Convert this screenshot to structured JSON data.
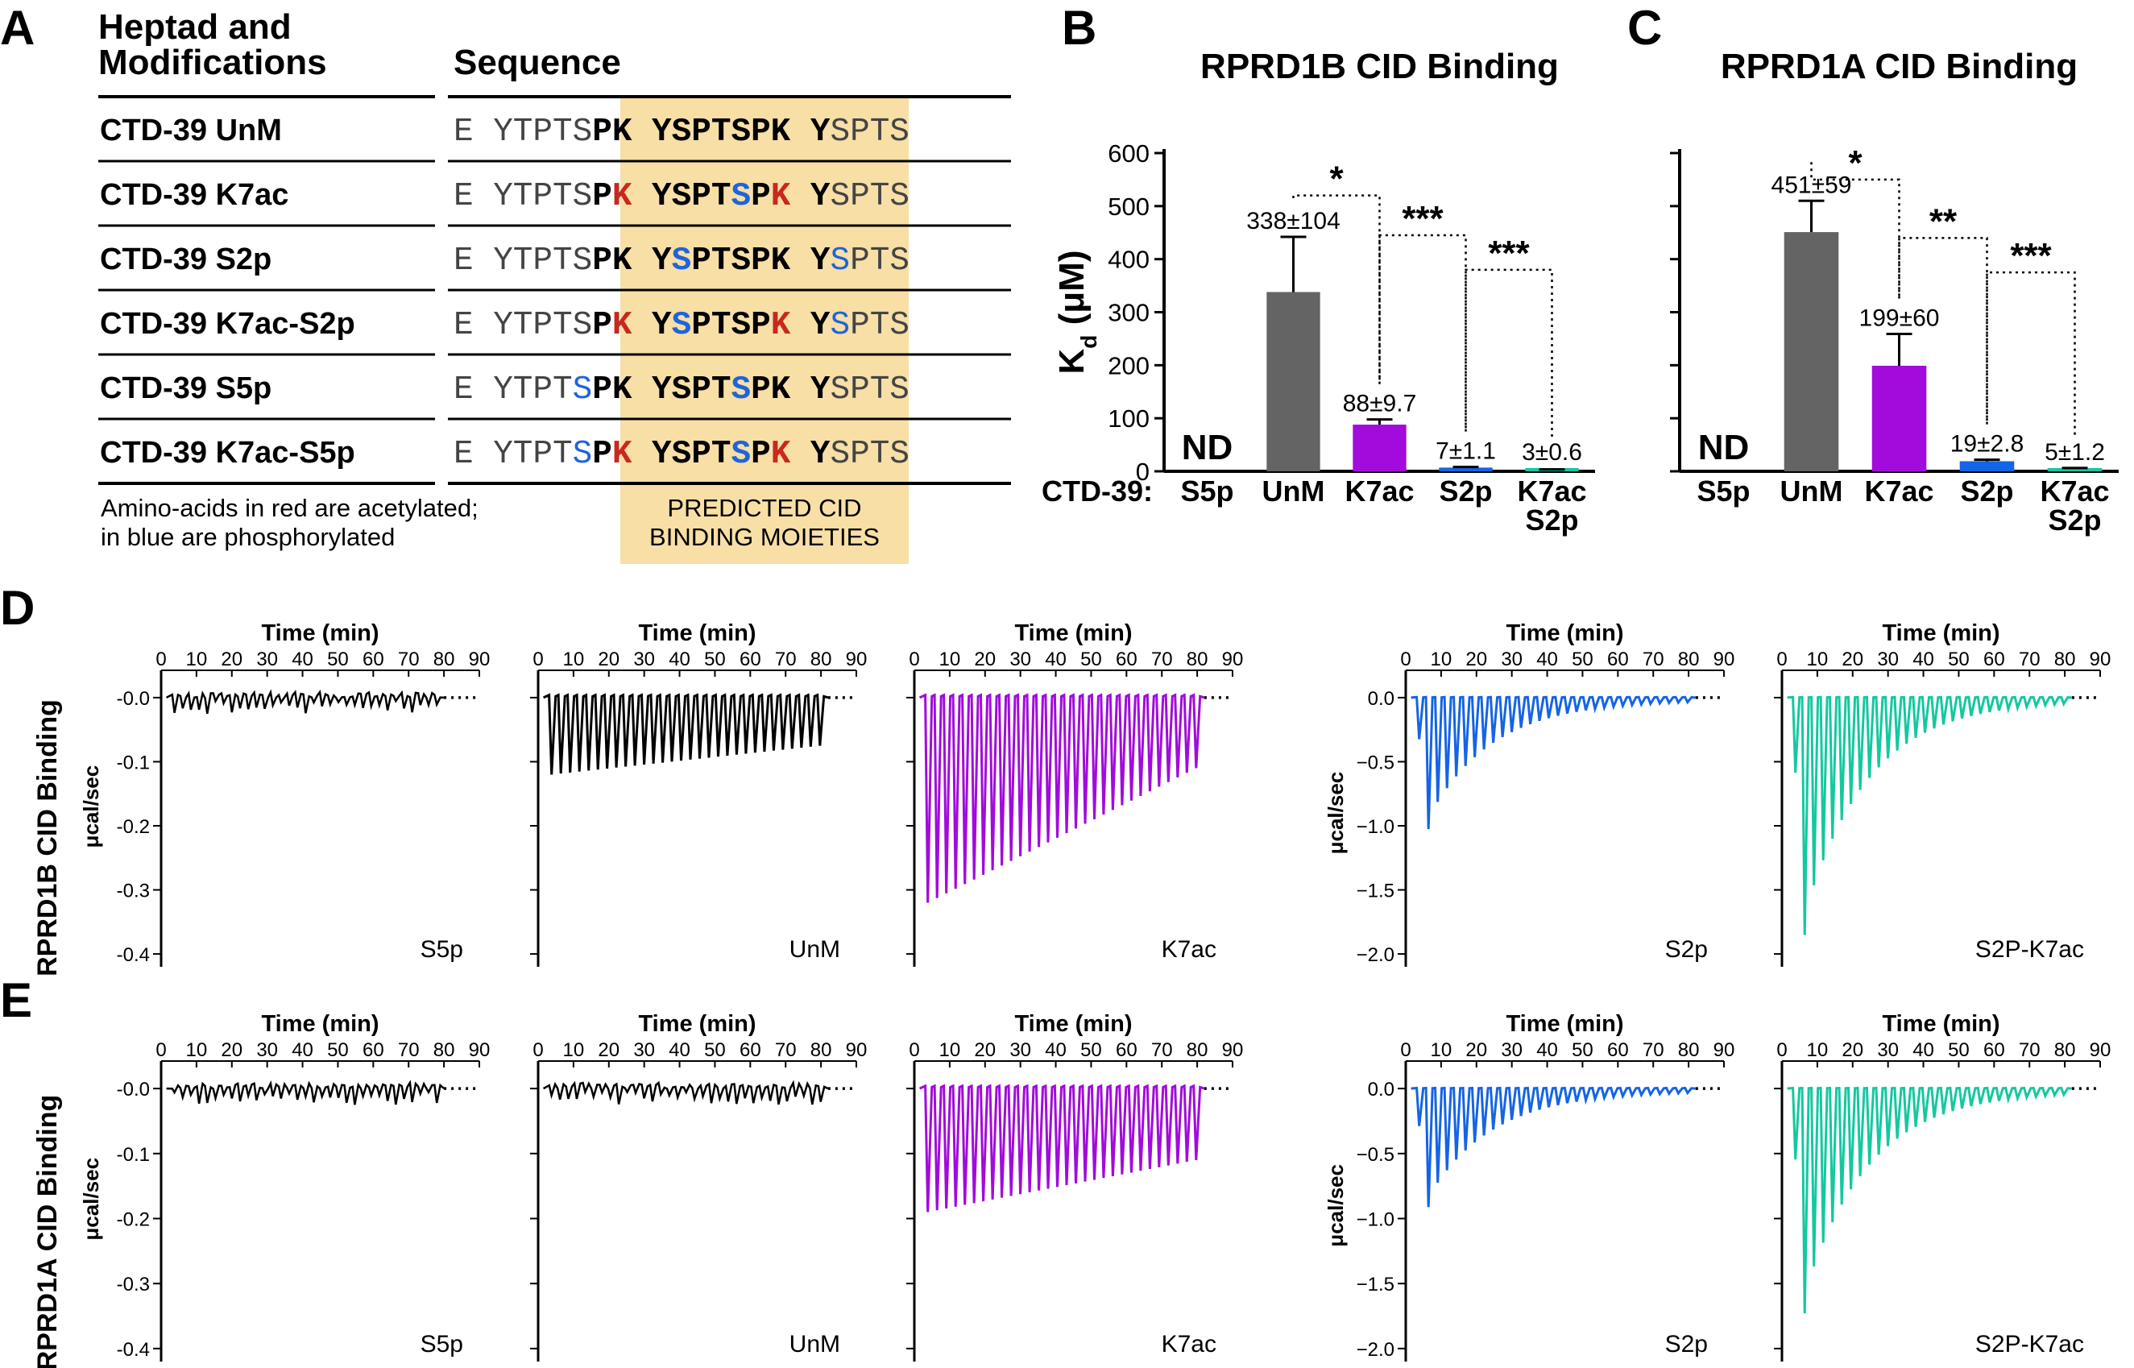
{
  "panels": {
    "a": "A",
    "b": "B",
    "c": "C",
    "d": "D",
    "e": "E"
  },
  "panel_a": {
    "header_left_line1": "Heptad and",
    "header_left_line2": "Modifications",
    "header_right": "Sequence",
    "rows": [
      {
        "label": "CTD-39 UnM",
        "segments": [
          {
            "t": "E YTPTS",
            "c": "p"
          },
          {
            "t": "PK YSPTSPK Y",
            "c": "b"
          },
          {
            "t": "SPTS",
            "c": "p"
          }
        ]
      },
      {
        "label": "CTD-39 K7ac",
        "segments": [
          {
            "t": "E YTPTS",
            "c": "p"
          },
          {
            "t": "P",
            "c": "b"
          },
          {
            "t": "K",
            "c": "r"
          },
          {
            "t": " YSPT",
            "c": "b"
          },
          {
            "t": "S",
            "c": "u"
          },
          {
            "t": "P",
            "c": "b"
          },
          {
            "t": "K",
            "c": "r"
          },
          {
            "t": " Y",
            "c": "b"
          },
          {
            "t": "SPTS",
            "c": "p"
          }
        ]
      },
      {
        "label": "CTD-39 S2p",
        "segments": [
          {
            "t": "E YTPTS",
            "c": "p"
          },
          {
            "t": "PK Y",
            "c": "b"
          },
          {
            "t": "S",
            "c": "u"
          },
          {
            "t": "PTSPK Y",
            "c": "b"
          },
          {
            "t": "S",
            "c": "q"
          },
          {
            "t": "PTS",
            "c": "p"
          }
        ]
      },
      {
        "label": "CTD-39 K7ac-S2p",
        "segments": [
          {
            "t": "E YTPTS",
            "c": "p"
          },
          {
            "t": "P",
            "c": "b"
          },
          {
            "t": "K",
            "c": "r"
          },
          {
            "t": " Y",
            "c": "b"
          },
          {
            "t": "S",
            "c": "u"
          },
          {
            "t": "PTSP",
            "c": "b"
          },
          {
            "t": "K",
            "c": "r"
          },
          {
            "t": " Y",
            "c": "b"
          },
          {
            "t": "S",
            "c": "q"
          },
          {
            "t": "PTS",
            "c": "p"
          }
        ]
      },
      {
        "label": "CTD-39 S5p",
        "segments": [
          {
            "t": "E YTPT",
            "c": "p"
          },
          {
            "t": "S",
            "c": "q"
          },
          {
            "t": "PK YSPT",
            "c": "b"
          },
          {
            "t": "S",
            "c": "u"
          },
          {
            "t": "PK Y",
            "c": "b"
          },
          {
            "t": "SPTS",
            "c": "p"
          }
        ]
      },
      {
        "label": "CTD-39 K7ac-S5p",
        "segments": [
          {
            "t": "E YTPT",
            "c": "p"
          },
          {
            "t": "S",
            "c": "q"
          },
          {
            "t": "P",
            "c": "b"
          },
          {
            "t": "K",
            "c": "r"
          },
          {
            "t": " YSPT",
            "c": "b"
          },
          {
            "t": "S",
            "c": "u"
          },
          {
            "t": "P",
            "c": "b"
          },
          {
            "t": "K",
            "c": "r"
          },
          {
            "t": " Y",
            "c": "b"
          },
          {
            "t": "SPTS",
            "c": "p"
          }
        ]
      }
    ],
    "note_line1": "Amino-acids in red are acetylated;",
    "note_line2": "in blue are phosphorylated",
    "box_line1": "PREDICTED CID",
    "box_line2": "BINDING MOIETIES"
  },
  "kd_charts": {
    "category_prefix": "CTD-39:",
    "ylabel": "K",
    "ylabel_sub": "d",
    "ylabel_unit": " (μM)",
    "nd_label": "ND"
  },
  "colors": {
    "unm": "#646464",
    "k7ac": "#a10bdb",
    "s2p": "#1464e6",
    "k7ac_s2p": "#14c8a0",
    "s5p": "#000000",
    "red_mod": "#c8281e",
    "blue_mod": "#1e64dc",
    "box": "#f7dfa6"
  },
  "itc_common": {
    "time_label": "Time (min)",
    "ylabel": "μcal/sec",
    "x_ticks": [
      "0",
      "10",
      "20",
      "30",
      "40",
      "50",
      "60",
      "70",
      "80",
      "90"
    ],
    "row_d_label": "RPRD1B CID Binding",
    "row_e_label": "RPRD1A CID Binding"
  },
  "chart_data": [
    {
      "type": "bar",
      "title": "RPRD1B CID Binding",
      "xlabel": "CTD-39:",
      "ylabel": "Kd (μM)",
      "ylim": [
        0,
        600
      ],
      "yticks": [
        "0",
        "100",
        "200",
        "300",
        "400",
        "500",
        "600"
      ],
      "categories": [
        [
          "S5p"
        ],
        [
          "UnM"
        ],
        [
          "K7ac"
        ],
        [
          "S2p"
        ],
        [
          "K7ac",
          "S2p"
        ]
      ],
      "values": [
        null,
        338,
        88,
        7,
        3
      ],
      "errors": [
        null,
        104,
        9.7,
        1.1,
        0.6
      ],
      "value_labels": [
        "ND",
        "338±104",
        "88±9.7",
        "7±1.1",
        "3±0.6"
      ],
      "significance": [
        {
          "from": 1,
          "to": 2,
          "label": "*",
          "level": 520
        },
        {
          "from": 2,
          "to": 3,
          "label": "***",
          "level": 445
        },
        {
          "from": 3,
          "to": 4,
          "label": "***",
          "level": 380
        }
      ]
    },
    {
      "type": "bar",
      "title": "RPRD1A CID Binding",
      "xlabel": "",
      "ylabel": "",
      "ylim": [
        0,
        600
      ],
      "categories": [
        [
          "S5p"
        ],
        [
          "UnM"
        ],
        [
          "K7ac"
        ],
        [
          "S2p"
        ],
        [
          "K7ac",
          "S2p"
        ]
      ],
      "values": [
        null,
        451,
        199,
        19,
        5
      ],
      "errors": [
        null,
        59,
        60,
        2.8,
        1.2
      ],
      "value_labels": [
        "ND",
        "451±59",
        "199±60",
        "19±2.8",
        "5±1.2"
      ],
      "significance": [
        {
          "from": 1,
          "to": 2,
          "label": "*",
          "level": 550
        },
        {
          "from": 2,
          "to": 3,
          "label": "**",
          "level": 440
        },
        {
          "from": 3,
          "to": 4,
          "label": "***",
          "level": 375
        }
      ]
    },
    {
      "type": "line",
      "title": "Time (min)",
      "row": "RPRD1B CID Binding",
      "label": "S5p",
      "xlim": [
        0,
        90
      ],
      "ylim": [
        -0.42,
        0.02
      ],
      "yticks": [
        "-0.0",
        "-0.1",
        "-0.2",
        "-0.3",
        "-0.4"
      ],
      "n_injections": 33,
      "first_peak": -0.02,
      "last_peak": -0.02,
      "x_end": 80
    },
    {
      "type": "line",
      "title": "Time (min)",
      "row": "RPRD1B CID Binding",
      "label": "UnM",
      "xlim": [
        0,
        90
      ],
      "ylim": [
        -0.42,
        0.02
      ],
      "n_injections": 30,
      "first_peak": -0.12,
      "last_peak": -0.075,
      "x_end": 82
    },
    {
      "type": "line",
      "title": "Time (min)",
      "row": "RPRD1B CID Binding",
      "label": "K7ac",
      "xlim": [
        0,
        90
      ],
      "ylim": [
        -0.42,
        0.02
      ],
      "n_injections": 30,
      "first_peak": -0.32,
      "last_peak": -0.11,
      "x_end": 82
    },
    {
      "type": "line",
      "title": "Time (min)",
      "row": "RPRD1B CID Binding",
      "label": "S2p",
      "xlim": [
        0,
        90
      ],
      "ylim": [
        -2.1,
        0.1
      ],
      "yticks": [
        "0.0",
        "−0.5",
        "−1.0",
        "−1.5",
        "−2.0"
      ],
      "n_injections": 30,
      "first_peak": -1.08,
      "last_peak": -0.02,
      "x_end": 82
    },
    {
      "type": "line",
      "title": "Time (min)",
      "row": "RPRD1B CID Binding",
      "label": "S2P-K7ac",
      "xlim": [
        0,
        90
      ],
      "ylim": [
        -2.1,
        0.1
      ],
      "n_injections": 30,
      "first_peak": -1.95,
      "last_peak": -0.02,
      "x_end": 82
    },
    {
      "type": "line",
      "title": "Time (min)",
      "row": "RPRD1A CID Binding",
      "label": "S5p",
      "xlim": [
        0,
        90
      ],
      "ylim": [
        -0.42,
        0.02
      ],
      "yticks": [
        "-0.0",
        "-0.1",
        "-0.2",
        "-0.3",
        "-0.4"
      ],
      "n_injections": 33,
      "first_peak": -0.02,
      "last_peak": -0.02,
      "x_end": 80
    },
    {
      "type": "line",
      "title": "Time (min)",
      "row": "RPRD1A CID Binding",
      "label": "UnM",
      "xlim": [
        0,
        90
      ],
      "ylim": [
        -0.42,
        0.02
      ],
      "n_injections": 33,
      "first_peak": -0.025,
      "last_peak": -0.025,
      "x_end": 82
    },
    {
      "type": "line",
      "title": "Time (min)",
      "row": "RPRD1A CID Binding",
      "label": "K7ac",
      "xlim": [
        0,
        90
      ],
      "ylim": [
        -0.42,
        0.02
      ],
      "n_injections": 30,
      "first_peak": -0.19,
      "last_peak": -0.11,
      "x_end": 82
    },
    {
      "type": "line",
      "title": "Time (min)",
      "row": "RPRD1A CID Binding",
      "label": "S2p",
      "xlim": [
        0,
        90
      ],
      "ylim": [
        -2.1,
        0.1
      ],
      "yticks": [
        "0.0",
        "−0.5",
        "−1.0",
        "−1.5",
        "−2.0"
      ],
      "n_injections": 30,
      "first_peak": -0.96,
      "last_peak": -0.02,
      "x_end": 82
    },
    {
      "type": "line",
      "title": "Time (min)",
      "row": "RPRD1A CID Binding",
      "label": "S2P-K7ac",
      "xlim": [
        0,
        90
      ],
      "ylim": [
        -2.1,
        0.1
      ],
      "n_injections": 30,
      "first_peak": -1.82,
      "last_peak": -0.02,
      "x_end": 82
    }
  ]
}
